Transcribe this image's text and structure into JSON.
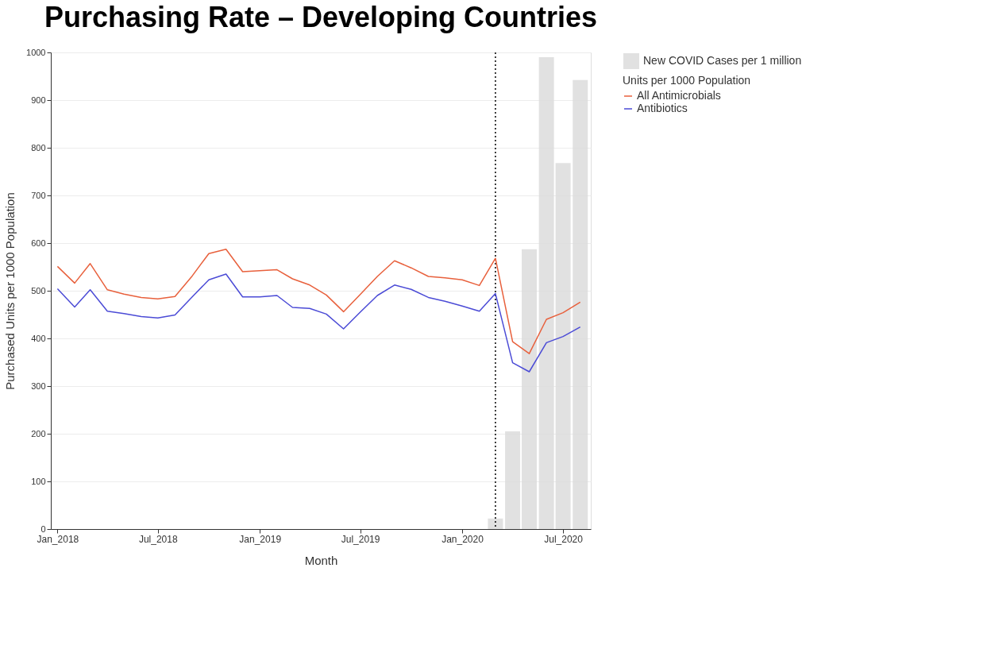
{
  "chart_data": {
    "type": "line",
    "title": "Purchasing Rate – Developing Countries",
    "xlabel": "Month",
    "ylabel": "Purchased Units per 1000 Population",
    "legend_title": "Units per 1000 Population",
    "x": [
      "2018-01",
      "2018-02",
      "2018-03",
      "2018-04",
      "2018-05",
      "2018-06",
      "2018-07",
      "2018-08",
      "2018-09",
      "2018-10",
      "2018-11",
      "2018-12",
      "2019-01",
      "2019-02",
      "2019-03",
      "2019-04",
      "2019-05",
      "2019-06",
      "2019-07",
      "2019-08",
      "2019-09",
      "2019-10",
      "2019-11",
      "2019-12",
      "2020-01",
      "2020-02",
      "2020-03",
      "2020-04",
      "2020-05",
      "2020-06",
      "2020-07",
      "2020-08"
    ],
    "series": [
      {
        "name": "New COVID Cases per 1 million",
        "type": "bar",
        "color": "#dcdcdc",
        "x": [
          "2020-03",
          "2020-04",
          "2020-05",
          "2020-06",
          "2020-07",
          "2020-08"
        ],
        "values": [
          22,
          205,
          587,
          990,
          768,
          942
        ]
      },
      {
        "name": "All Antimicrobials",
        "color": "#e8603c",
        "values": [
          551,
          516,
          557,
          502,
          493,
          486,
          483,
          488,
          531,
          578,
          587,
          540,
          542,
          544,
          525,
          512,
          491,
          456,
          492,
          530,
          563,
          548,
          530,
          527,
          523,
          511,
          568,
          393,
          368,
          440,
          454,
          476
        ]
      },
      {
        "name": "Antibiotics",
        "color": "#4b4bd6",
        "values": [
          504,
          466,
          502,
          457,
          452,
          446,
          443,
          449,
          487,
          523,
          535,
          487,
          487,
          490,
          465,
          463,
          451,
          420,
          455,
          490,
          512,
          503,
          486,
          478,
          468,
          457,
          494,
          349,
          330,
          391,
          404,
          424
        ]
      }
    ],
    "xlim": [
      "2017-12-20",
      "2020-08-20"
    ],
    "xticks": [
      {
        "value": "2018-01",
        "label": "Jan_2018"
      },
      {
        "value": "2018-07",
        "label": "Jul_2018"
      },
      {
        "value": "2019-01",
        "label": "Jan_2019"
      },
      {
        "value": "2019-07",
        "label": "Jul_2019"
      },
      {
        "value": "2020-01",
        "label": "Jan_2020"
      },
      {
        "value": "2020-07",
        "label": "Jul_2020"
      }
    ],
    "ylim": [
      0,
      1000
    ],
    "yticks": [
      0,
      100,
      200,
      300,
      400,
      500,
      600,
      700,
      800,
      900,
      1000
    ],
    "ref_lines": [
      {
        "axis": "x",
        "value": "2020-03",
        "color": "#000000",
        "line_style": "dotted"
      }
    ],
    "grid": "y",
    "legend": "right",
    "marker": "none",
    "line_style": "solid"
  }
}
